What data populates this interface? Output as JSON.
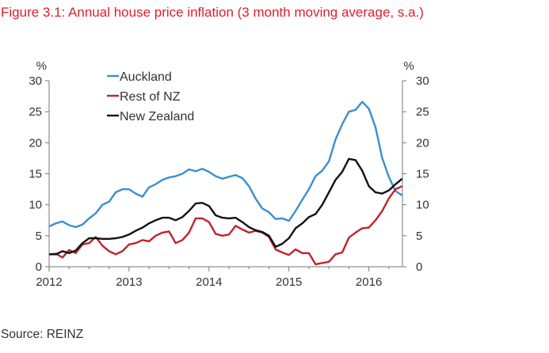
{
  "figure": {
    "title": "Figure 3.1: Annual house price inflation (3 month moving average, s.a.)",
    "source": "Source: REINZ"
  },
  "colors": {
    "auckland": "#3a8fcf",
    "rest_of_nz": "#c0232b",
    "new_zealand": "#111111",
    "axis": "#777777",
    "text": "#333333",
    "title": "#e0202a"
  },
  "chart_data": {
    "type": "line",
    "title": "Annual house price inflation (3 month moving average, s.a.)",
    "ylabel_left": "%",
    "ylabel_right": "%",
    "ylim": [
      0,
      30
    ],
    "yticks": [
      0,
      5,
      10,
      15,
      20,
      25,
      30
    ],
    "xlim": [
      2012.0,
      2016.42
    ],
    "xticks": [
      {
        "value": 2012,
        "label": "2012"
      },
      {
        "value": 2013,
        "label": "2013"
      },
      {
        "value": 2014,
        "label": "2014"
      },
      {
        "value": 2015,
        "label": "2015"
      },
      {
        "value": 2016,
        "label": "2016"
      }
    ],
    "grid": false,
    "legend_position": "top-left",
    "series": [
      {
        "name": "Auckland",
        "color_key": "auckland",
        "x": [
          2012.0,
          2012.083,
          2012.167,
          2012.25,
          2012.333,
          2012.417,
          2012.5,
          2012.583,
          2012.667,
          2012.75,
          2012.833,
          2012.917,
          2013.0,
          2013.083,
          2013.167,
          2013.25,
          2013.333,
          2013.417,
          2013.5,
          2013.583,
          2013.667,
          2013.75,
          2013.833,
          2013.917,
          2014.0,
          2014.083,
          2014.167,
          2014.25,
          2014.333,
          2014.417,
          2014.5,
          2014.583,
          2014.667,
          2014.75,
          2014.833,
          2014.917,
          2015.0,
          2015.083,
          2015.167,
          2015.25,
          2015.333,
          2015.417,
          2015.5,
          2015.583,
          2015.667,
          2015.75,
          2015.833,
          2015.917,
          2016.0,
          2016.083,
          2016.167,
          2016.25,
          2016.333,
          2016.417
        ],
        "y": [
          6.5,
          7.0,
          7.3,
          6.7,
          6.4,
          6.8,
          7.8,
          8.6,
          10.0,
          10.5,
          12.0,
          12.5,
          12.5,
          11.8,
          11.3,
          12.8,
          13.3,
          14.0,
          14.4,
          14.6,
          15.0,
          15.7,
          15.4,
          15.8,
          15.3,
          14.6,
          14.2,
          14.5,
          14.8,
          14.3,
          13.0,
          11.0,
          9.4,
          8.8,
          7.7,
          7.8,
          7.4,
          9.0,
          10.8,
          12.5,
          14.6,
          15.5,
          17.0,
          20.5,
          23.0,
          25.0,
          25.3,
          26.6,
          25.5,
          22.5,
          17.5,
          14.5,
          12.2,
          11.5
        ]
      },
      {
        "name": "Rest of NZ",
        "color_key": "rest_of_nz",
        "x": [
          2012.0,
          2012.083,
          2012.167,
          2012.25,
          2012.333,
          2012.417,
          2012.5,
          2012.583,
          2012.667,
          2012.75,
          2012.833,
          2012.917,
          2013.0,
          2013.083,
          2013.167,
          2013.25,
          2013.333,
          2013.417,
          2013.5,
          2013.583,
          2013.667,
          2013.75,
          2013.833,
          2013.917,
          2014.0,
          2014.083,
          2014.167,
          2014.25,
          2014.333,
          2014.417,
          2014.5,
          2014.583,
          2014.667,
          2014.75,
          2014.833,
          2014.917,
          2015.0,
          2015.083,
          2015.167,
          2015.25,
          2015.333,
          2015.417,
          2015.5,
          2015.583,
          2015.667,
          2015.75,
          2015.833,
          2015.917,
          2016.0,
          2016.083,
          2016.167,
          2016.25,
          2016.333,
          2016.417
        ],
        "y": [
          2.0,
          2.1,
          1.5,
          2.7,
          2.2,
          3.6,
          3.8,
          4.8,
          3.4,
          2.5,
          2.0,
          2.5,
          3.6,
          3.8,
          4.3,
          4.1,
          5.0,
          5.5,
          5.7,
          3.8,
          4.3,
          5.5,
          7.8,
          7.8,
          7.2,
          5.3,
          5.0,
          5.2,
          6.6,
          6.0,
          5.5,
          5.8,
          5.5,
          4.8,
          2.8,
          2.3,
          1.9,
          2.8,
          2.2,
          2.2,
          0.4,
          0.6,
          0.8,
          2.0,
          2.3,
          4.7,
          5.5,
          6.2,
          6.3,
          7.5,
          9.0,
          11.0,
          12.5,
          13.0
        ]
      },
      {
        "name": "New Zealand",
        "color_key": "new_zealand",
        "x": [
          2012.0,
          2012.083,
          2012.167,
          2012.25,
          2012.333,
          2012.417,
          2012.5,
          2012.583,
          2012.667,
          2012.75,
          2012.833,
          2012.917,
          2013.0,
          2013.083,
          2013.167,
          2013.25,
          2013.333,
          2013.417,
          2013.5,
          2013.583,
          2013.667,
          2013.75,
          2013.833,
          2013.917,
          2014.0,
          2014.083,
          2014.167,
          2014.25,
          2014.333,
          2014.417,
          2014.5,
          2014.583,
          2014.667,
          2014.75,
          2014.833,
          2014.917,
          2015.0,
          2015.083,
          2015.167,
          2015.25,
          2015.333,
          2015.417,
          2015.5,
          2015.583,
          2015.667,
          2015.75,
          2015.833,
          2015.917,
          2016.0,
          2016.083,
          2016.167,
          2016.25,
          2016.333,
          2016.417
        ],
        "y": [
          2.0,
          2.0,
          2.5,
          2.2,
          2.6,
          3.8,
          4.6,
          4.6,
          4.5,
          4.5,
          4.6,
          4.8,
          5.2,
          5.8,
          6.3,
          7.0,
          7.5,
          7.9,
          7.9,
          7.5,
          8.0,
          9.0,
          10.2,
          10.3,
          9.8,
          8.3,
          7.9,
          7.8,
          7.9,
          7.2,
          6.4,
          5.9,
          5.6,
          5.0,
          3.2,
          3.7,
          4.6,
          6.2,
          7.0,
          8.0,
          8.5,
          10.0,
          12.0,
          14.0,
          15.3,
          17.4,
          17.2,
          15.5,
          13.0,
          12.0,
          11.8,
          12.3,
          13.3,
          14.2
        ]
      }
    ]
  }
}
